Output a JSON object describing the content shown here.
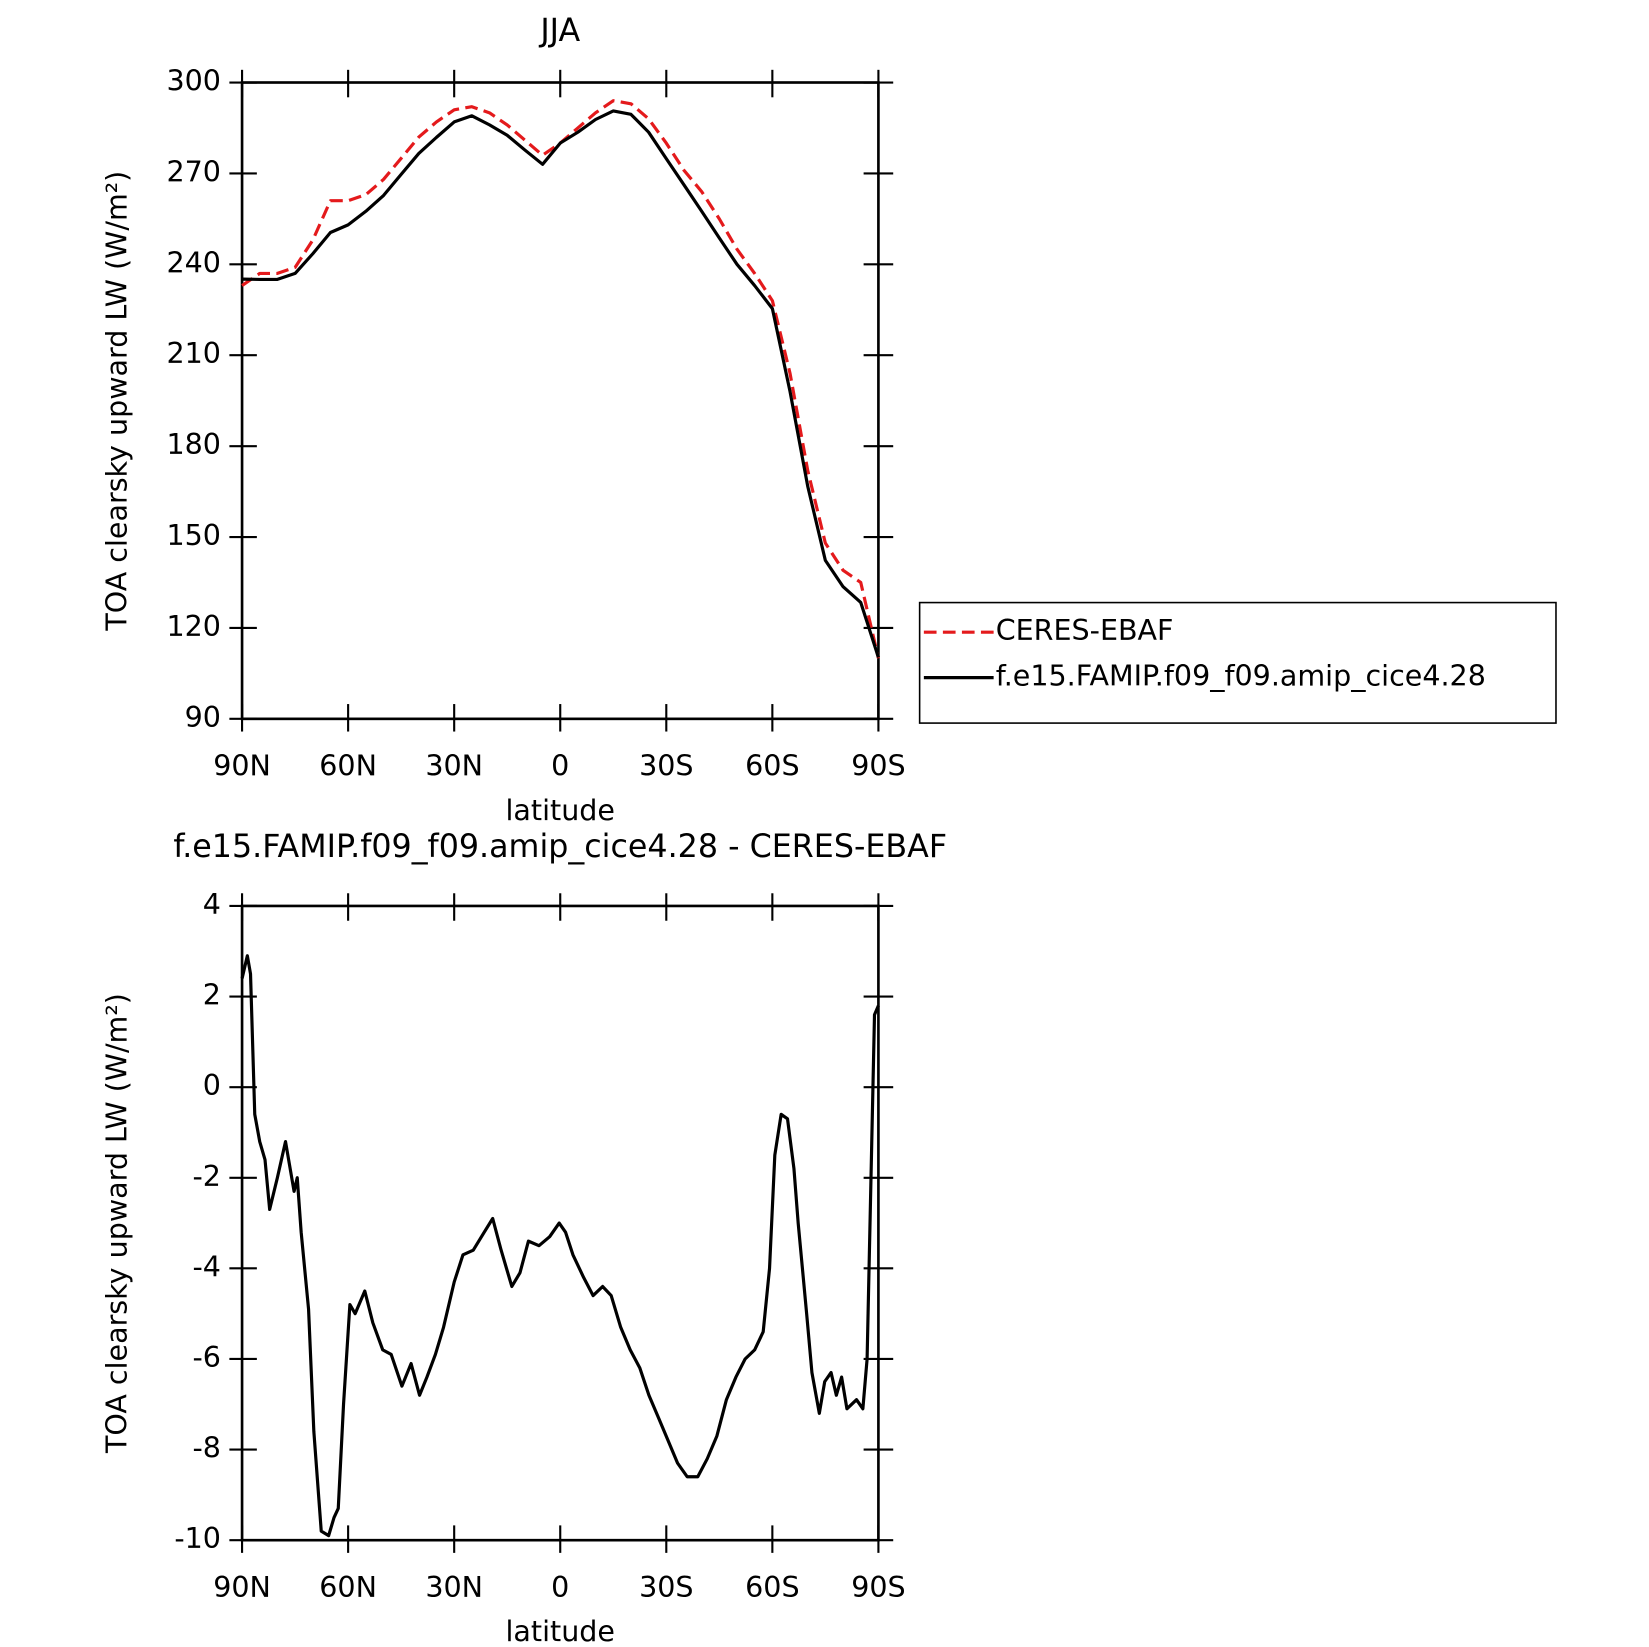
{
  "chart_data": [
    {
      "type": "line",
      "title": "JJA",
      "xlabel": "latitude",
      "ylabel": "TOA clearsky upward LW (W/m²)",
      "x": [
        90,
        85,
        80,
        75,
        70,
        65,
        60,
        55,
        50,
        45,
        40,
        35,
        30,
        25,
        20,
        15,
        10,
        5,
        0,
        -5,
        -10,
        -15,
        -20,
        -25,
        -30,
        -35,
        -40,
        -45,
        -50,
        -55,
        -60,
        -65,
        -70,
        -75,
        -80,
        -85,
        -90
      ],
      "series": [
        {
          "name": "CERES-EBAF",
          "color": "#e41a1c",
          "linestyle": "dashed",
          "values": [
            233,
            237,
            237,
            239,
            248,
            261,
            261,
            263,
            268,
            275,
            282,
            287,
            291,
            292,
            290,
            286,
            281,
            276,
            280,
            285,
            290,
            294,
            293,
            288,
            280,
            271,
            264,
            255,
            245,
            237,
            228,
            204,
            172,
            148,
            139,
            135,
            110
          ]
        },
        {
          "name": "f.e15.FAMIP.f09_f09.amip_cice4.28",
          "color": "#000000",
          "linestyle": "solid",
          "values": [
            235.1,
            235,
            235,
            237,
            243.5,
            250.5,
            253,
            257.5,
            262.7,
            269.7,
            276.6,
            281.9,
            287,
            289,
            286,
            282.6,
            277.7,
            273,
            280,
            283.6,
            287.8,
            290.6,
            289.5,
            283.6,
            274.9,
            266.2,
            257.5,
            248.7,
            240,
            233,
            225.4,
            198,
            166.8,
            142.3,
            133.6,
            128.4,
            110.3
          ]
        }
      ],
      "xlim": [
        90,
        -90
      ],
      "xticks": [
        {
          "value": 90,
          "label": "90N"
        },
        {
          "value": 60,
          "label": "60N"
        },
        {
          "value": 30,
          "label": "30N"
        },
        0,
        {
          "value": -30,
          "label": "30S"
        },
        {
          "value": -60,
          "label": "60S"
        },
        {
          "value": -90,
          "label": "90S"
        }
      ],
      "ylim": [
        90,
        300
      ],
      "yticks": [
        90,
        120,
        150,
        180,
        210,
        240,
        270,
        300
      ],
      "legend": "right"
    },
    {
      "type": "line",
      "title": "f.e15.FAMIP.f09_f09.amip_cice4.28 - CERES-EBAF",
      "xlabel": "latitude",
      "ylabel": "TOA clearsky upward LW (W/m²)",
      "x": [
        90,
        88.5,
        87.6,
        86.4,
        85,
        83.5,
        82.2,
        80,
        77.7,
        75.3,
        74.4,
        73.3,
        71.2,
        69.7,
        67.6,
        65.5,
        64,
        62.8,
        61.3,
        59.5,
        58,
        55.3,
        53,
        50.2,
        47.8,
        44.8,
        42.2,
        39.8,
        37.7,
        35.3,
        33,
        30,
        27.5,
        24.6,
        21.5,
        19.1,
        16.7,
        13.7,
        11.4,
        9,
        6,
        3,
        0.3,
        -1.5,
        -3.6,
        -6.6,
        -9.3,
        -12,
        -14.4,
        -17.1,
        -19.8,
        -22.5,
        -25.1,
        -27.8,
        -30.5,
        -33.2,
        -35.9,
        -38.9,
        -41.6,
        -44.3,
        -47,
        -49.7,
        -52.3,
        -55,
        -57.4,
        -59.2,
        -60.7,
        -62.5,
        -64.3,
        -66.1,
        -67.3,
        -69.7,
        -71.2,
        -73.3,
        -74.8,
        -76.6,
        -78.1,
        -79.6,
        -81.1,
        -83.8,
        -85.6,
        -86.8,
        -88.9,
        -90
      ],
      "values": [
        2.4,
        2.9,
        2.5,
        -0.6,
        -1.2,
        -1.6,
        -2.7,
        -2.0,
        -1.2,
        -2.3,
        -2.0,
        -3.2,
        -4.9,
        -7.6,
        -9.8,
        -9.9,
        -9.5,
        -9.3,
        -7,
        -4.8,
        -5,
        -4.5,
        -5.2,
        -5.8,
        -5.9,
        -6.6,
        -6.1,
        -6.8,
        -6.4,
        -5.9,
        -5.3,
        -4.3,
        -3.7,
        -3.6,
        -3.2,
        -2.9,
        -3.6,
        -4.4,
        -4.1,
        -3.4,
        -3.5,
        -3.3,
        -3.0,
        -3.2,
        -3.7,
        -4.2,
        -4.6,
        -4.4,
        -4.6,
        -5.3,
        -5.8,
        -6.2,
        -6.8,
        -7.3,
        -7.8,
        -8.3,
        -8.6,
        -8.6,
        -8.2,
        -7.7,
        -6.9,
        -6.4,
        -6.0,
        -5.8,
        -5.4,
        -4.0,
        -1.5,
        -0.6,
        -0.7,
        -1.8,
        -3.0,
        -5.0,
        -6.3,
        -7.2,
        -6.5,
        -6.3,
        -6.8,
        -6.4,
        -7.1,
        -6.9,
        -7.1,
        -6.0,
        1.6,
        1.8
      ],
      "color": "#000000",
      "xlim": [
        90,
        -90
      ],
      "xticks": [
        {
          "value": 90,
          "label": "90N"
        },
        {
          "value": 60,
          "label": "60N"
        },
        {
          "value": 30,
          "label": "30N"
        },
        0,
        {
          "value": -30,
          "label": "30S"
        },
        {
          "value": -60,
          "label": "60S"
        },
        {
          "value": -90,
          "label": "90S"
        }
      ],
      "ylim": [
        -10,
        4
      ],
      "yticks": [
        -10,
        -8,
        -6,
        -4,
        -2,
        0,
        2,
        4
      ]
    }
  ]
}
